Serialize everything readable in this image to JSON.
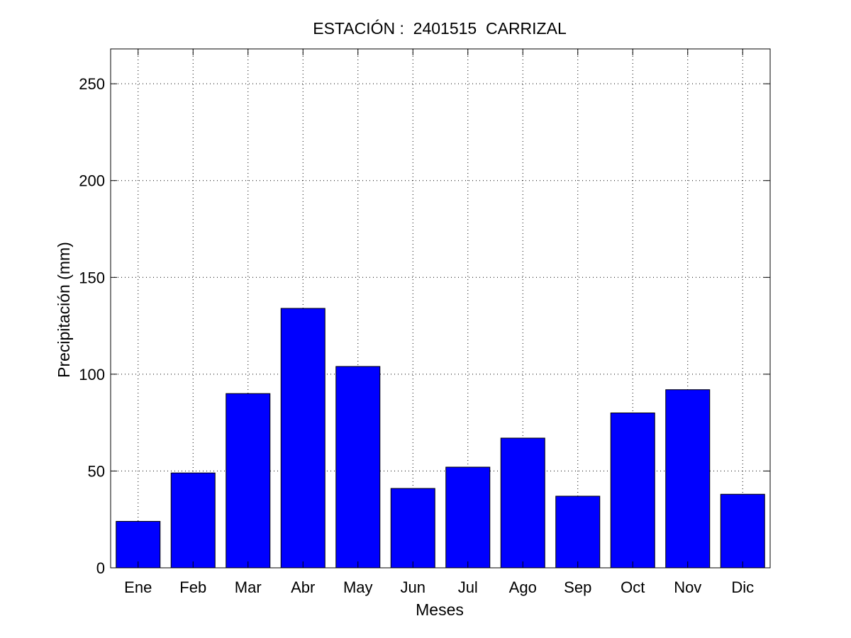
{
  "chart_data": {
    "type": "bar",
    "title": "ESTACIÓN :  2401515  CARRIZAL",
    "xlabel": "Meses",
    "ylabel": "Precipitación (mm)",
    "categories": [
      "Ene",
      "Feb",
      "Mar",
      "Abr",
      "May",
      "Jun",
      "Jul",
      "Ago",
      "Sep",
      "Oct",
      "Nov",
      "Dic"
    ],
    "values": [
      24,
      49,
      90,
      134,
      104,
      41,
      52,
      67,
      37,
      80,
      92,
      38
    ],
    "ylim": [
      0,
      268
    ],
    "yticks": [
      0,
      50,
      100,
      150,
      200,
      250
    ],
    "grid": true,
    "bar_color": "#0000ff",
    "edge_color": "#000000"
  }
}
